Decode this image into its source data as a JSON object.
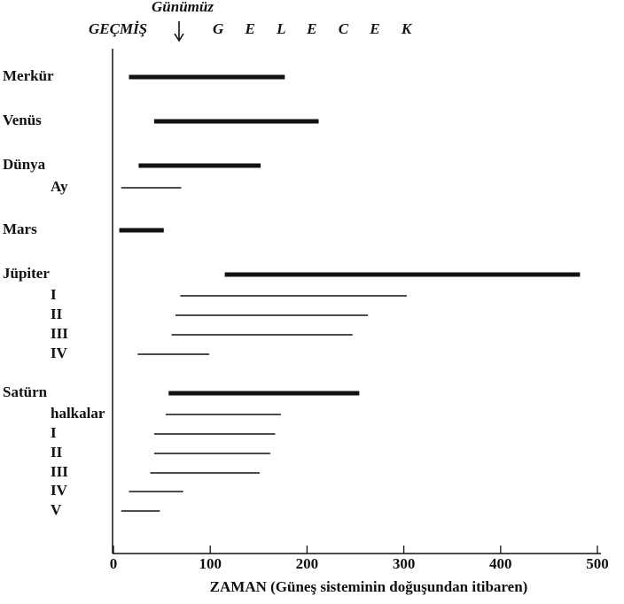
{
  "chart_data": {
    "type": "range",
    "past_label": "GEÇMİŞ",
    "now_label": "Günümüz",
    "future_label": "G E L E C E K",
    "x_label": "ZAMAN (Güneş sisteminin doğuşundan itibaren)",
    "xlim": [
      0,
      500
    ],
    "xticks": [
      0,
      100,
      200,
      300,
      400,
      500
    ],
    "color": "#111111",
    "rows": [
      {
        "label": "Merkür",
        "start": 16,
        "end": 177,
        "thick": true
      },
      {
        "label": "Venüs",
        "start": 42,
        "end": 212,
        "thick": true
      },
      {
        "label": "Dünya",
        "start": 26,
        "end": 152,
        "thick": true
      },
      {
        "label": "Ay",
        "start": 8,
        "end": 70,
        "thick": false
      },
      {
        "label": "Mars",
        "start": 6,
        "end": 52,
        "thick": true
      },
      {
        "label": "Jüpiter",
        "start": 115,
        "end": 482,
        "thick": true
      },
      {
        "label": "I",
        "start": 69,
        "end": 303,
        "thick": false
      },
      {
        "label": "II",
        "start": 64,
        "end": 263,
        "thick": false
      },
      {
        "label": "III",
        "start": 60,
        "end": 247,
        "thick": false
      },
      {
        "label": "IV",
        "start": 25,
        "end": 99,
        "thick": false
      },
      {
        "label": "Satürn",
        "start": 57,
        "end": 254,
        "thick": true
      },
      {
        "label": "halkalar",
        "start": 54,
        "end": 173,
        "thick": false
      },
      {
        "label": "I",
        "start": 42,
        "end": 167,
        "thick": false
      },
      {
        "label": "II",
        "start": 42,
        "end": 162,
        "thick": false
      },
      {
        "label": "III",
        "start": 38,
        "end": 151,
        "thick": false
      },
      {
        "label": "IV",
        "start": 16,
        "end": 72,
        "thick": false
      },
      {
        "label": "V",
        "start": 8,
        "end": 48,
        "thick": false
      }
    ]
  }
}
